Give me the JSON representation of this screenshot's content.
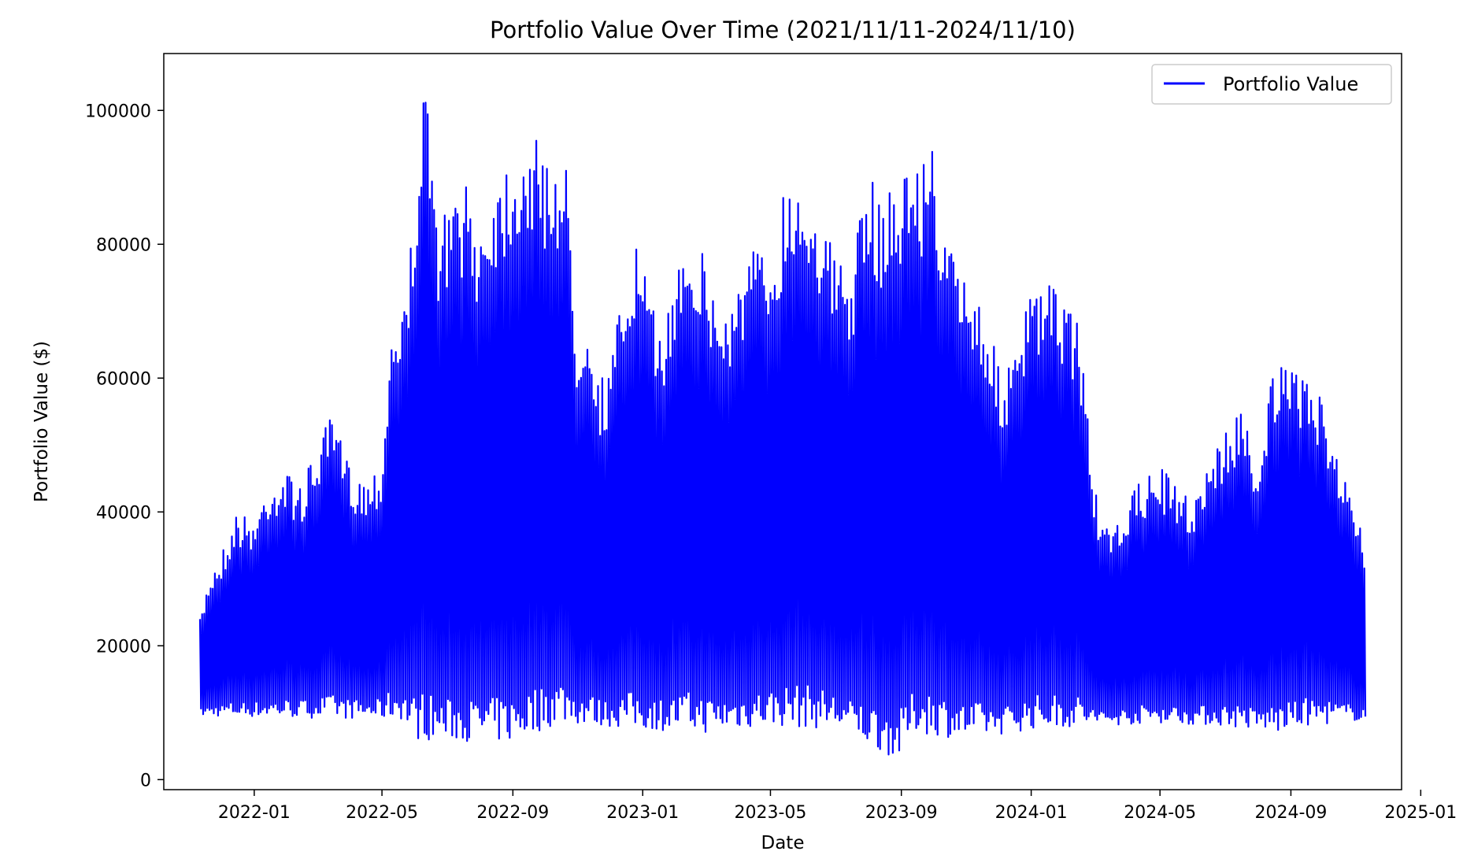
{
  "chart_data": {
    "type": "line",
    "title": "Portfolio Value Over Time (2021/11/11-2024/11/10)",
    "xlabel": "Date",
    "ylabel": "Portfolio Value ($)",
    "x_range": [
      "2021-11-11",
      "2024-11-10"
    ],
    "xlim": [
      "2021-10-08",
      "2024-12-14"
    ],
    "ylim": [
      -1500,
      108500
    ],
    "x_ticks": [
      "2022-01",
      "2022-05",
      "2022-09",
      "2023-01",
      "2023-05",
      "2023-09",
      "2024-01",
      "2024-05",
      "2024-09",
      "2025-01"
    ],
    "y_ticks": [
      0,
      20000,
      40000,
      60000,
      80000,
      100000
    ],
    "grid": false,
    "legend_position": "upper right",
    "series": [
      {
        "name": "Portfolio Value",
        "color": "#0000ff",
        "envelope_note": "oscillating daily between lower and upper envelope",
        "upper_envelope": {
          "x": [
            "2021-11-11",
            "2021-11-20",
            "2021-12-01",
            "2021-12-15",
            "2022-01-01",
            "2022-01-15",
            "2022-02-01",
            "2022-02-15",
            "2022-03-01",
            "2022-03-15",
            "2022-04-01",
            "2022-04-15",
            "2022-05-01",
            "2022-05-10",
            "2022-05-25",
            "2022-06-05",
            "2022-06-12",
            "2022-06-20",
            "2022-07-01",
            "2022-07-15",
            "2022-08-01",
            "2022-08-15",
            "2022-09-01",
            "2022-09-15",
            "2022-10-01",
            "2022-10-20",
            "2022-11-01",
            "2022-11-10",
            "2022-11-20",
            "2022-12-01",
            "2022-12-15",
            "2022-12-28",
            "2023-01-10",
            "2023-01-25",
            "2023-02-10",
            "2023-03-01",
            "2023-03-15",
            "2023-04-01",
            "2023-04-15",
            "2023-05-01",
            "2023-05-15",
            "2023-06-01",
            "2023-06-15",
            "2023-07-01",
            "2023-07-15",
            "2023-08-01",
            "2023-08-15",
            "2023-09-01",
            "2023-09-15",
            "2023-10-01",
            "2023-10-15",
            "2023-11-01",
            "2023-11-15",
            "2023-12-01",
            "2023-12-15",
            "2024-01-01",
            "2024-01-15",
            "2024-02-01",
            "2024-02-15",
            "2024-03-01",
            "2024-03-15",
            "2024-04-01",
            "2024-04-15",
            "2024-05-01",
            "2024-05-15",
            "2024-06-01",
            "2024-06-15",
            "2024-07-01",
            "2024-07-15",
            "2024-08-01",
            "2024-08-15",
            "2024-09-01",
            "2024-09-15",
            "2024-10-01",
            "2024-10-10",
            "2024-10-20",
            "2024-11-01",
            "2024-11-10"
          ],
          "y": [
            24000,
            31000,
            34000,
            40000,
            39000,
            45000,
            46000,
            44000,
            50000,
            54500,
            47000,
            45000,
            48000,
            69000,
            73000,
            100000,
            103000,
            86000,
            85000,
            90000,
            84000,
            91000,
            95000,
            97000,
            94000,
            94000,
            66000,
            74000,
            60000,
            62000,
            75000,
            81000,
            70000,
            70000,
            85000,
            78000,
            70000,
            75000,
            80000,
            79000,
            90000,
            91000,
            87000,
            78000,
            77000,
            90000,
            88000,
            92000,
            93000,
            95000,
            80000,
            76000,
            73000,
            62000,
            62000,
            74000,
            74000,
            73000,
            69000,
            43000,
            36000,
            42000,
            45000,
            47000,
            44000,
            42000,
            48000,
            52000,
            56000,
            48000,
            62000,
            61000,
            62000,
            56000,
            53000,
            46000,
            40000,
            35000
          ]
        },
        "lower_envelope": {
          "x": [
            "2021-11-11",
            "2022-05-20",
            "2022-06-01",
            "2022-09-01",
            "2022-10-15",
            "2023-01-01",
            "2023-03-01",
            "2023-05-01",
            "2023-07-01",
            "2023-08-29",
            "2023-09-15",
            "2023-11-01",
            "2024-01-01",
            "2024-03-01",
            "2024-05-01",
            "2024-07-01",
            "2024-08-20",
            "2024-09-15",
            "2024-11-10"
          ],
          "y": [
            9500,
            9000,
            6000,
            5500,
            8500,
            7500,
            7000,
            8000,
            7500,
            3000,
            7000,
            6000,
            7500,
            8000,
            8500,
            8000,
            7000,
            8000,
            9000
          ]
        }
      }
    ]
  }
}
